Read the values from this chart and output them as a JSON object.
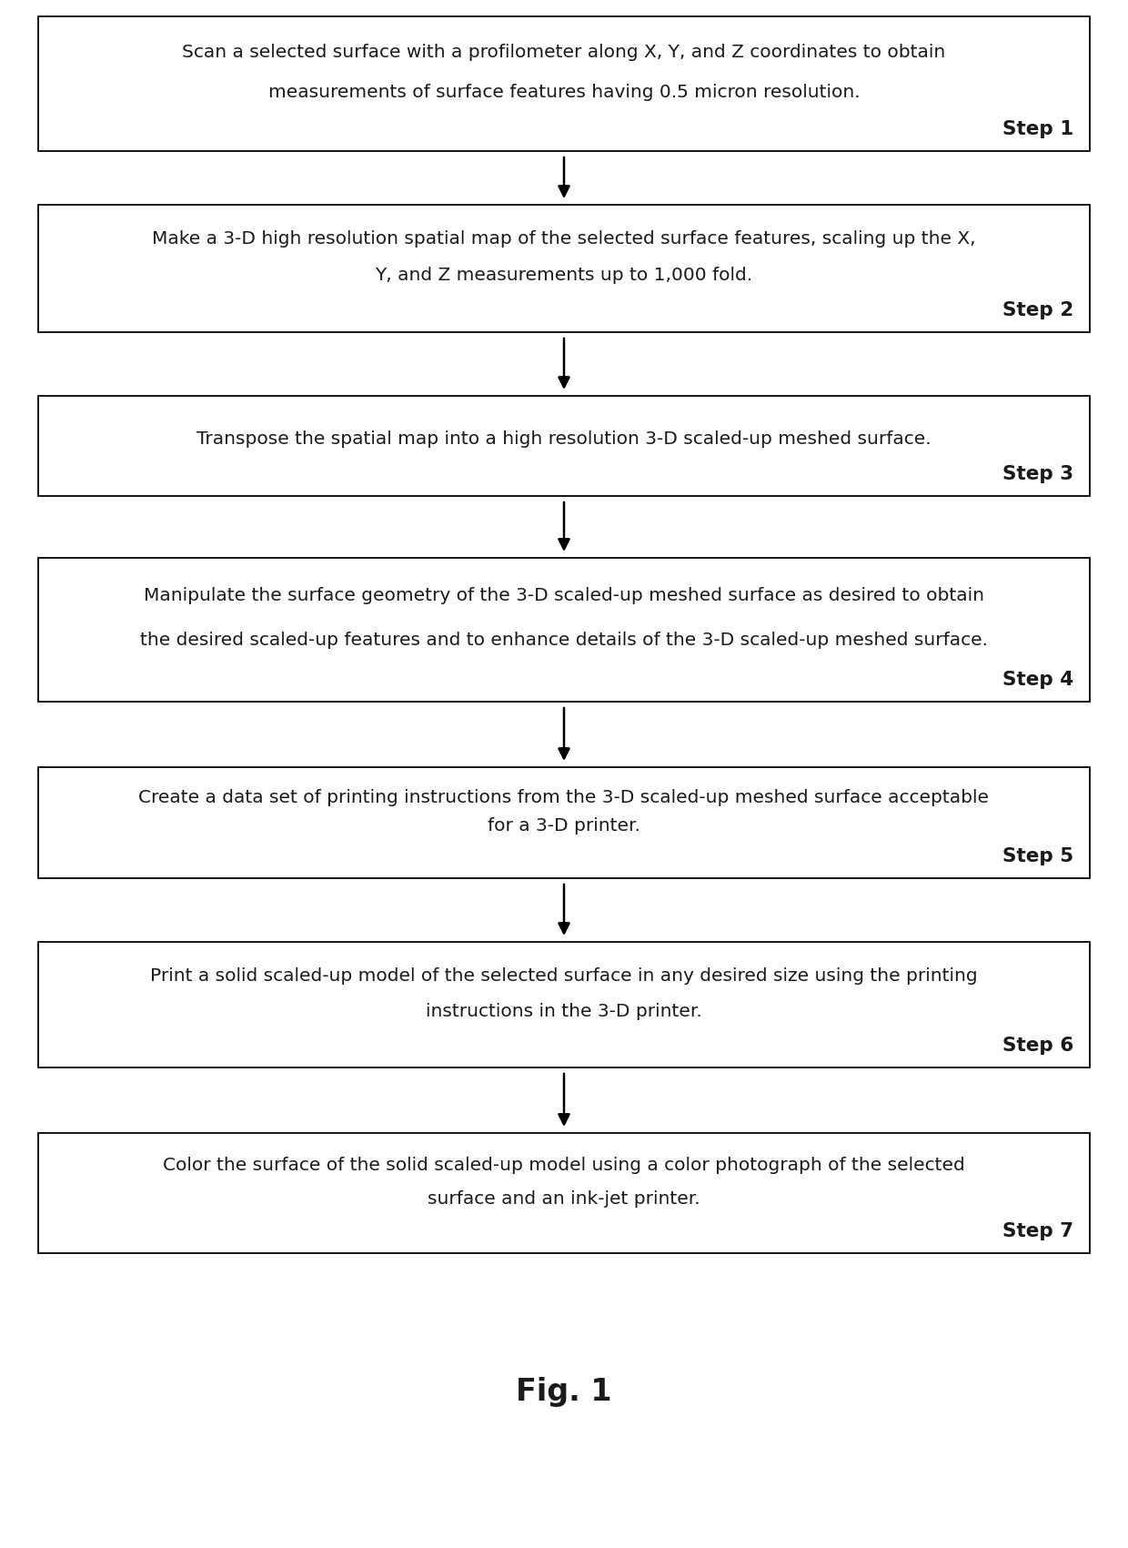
{
  "title": "Fig. 1",
  "background_color": "#ffffff",
  "steps": [
    {
      "step_num": "Step 1",
      "line1": "Scan a selected surface with a profilometer along X, Y, and Z coordinates to obtain",
      "line2": "measurements of surface features having 0.5 micron resolution.",
      "n_text_lines": 2
    },
    {
      "step_num": "Step 2",
      "line1": "Make a 3-D high resolution spatial map of the selected surface features, scaling up the X,",
      "line2": "Y, and Z measurements up to 1,000 fold.",
      "n_text_lines": 2
    },
    {
      "step_num": "Step 3",
      "line1": "Transpose the spatial map into a high resolution 3-D scaled-up meshed surface.",
      "line2": "",
      "n_text_lines": 1
    },
    {
      "step_num": "Step 4",
      "line1": "Manipulate the surface geometry of the 3-D scaled-up meshed surface as desired to obtain",
      "line2": "the desired scaled-up features and to enhance details of the 3-D scaled-up meshed surface.",
      "n_text_lines": 2
    },
    {
      "step_num": "Step 5",
      "line1": "Create a data set of printing instructions from the 3-D scaled-up meshed surface acceptable",
      "line2": "for a 3-D printer.",
      "n_text_lines": 2
    },
    {
      "step_num": "Step 6",
      "line1": "Print a solid scaled-up model of the selected surface in any desired size using the printing",
      "line2": "instructions in the 3-D printer.",
      "n_text_lines": 2
    },
    {
      "step_num": "Step 7",
      "line1": "Color the surface of the solid scaled-up model using a color photograph of the selected",
      "line2": "surface and an ink-jet printer.",
      "n_text_lines": 2
    }
  ],
  "box_edge_color": "#000000",
  "box_face_color": "#ffffff",
  "text_color": "#1a1a1a",
  "arrow_color": "#000000",
  "text_fontsize": 14.5,
  "step_fontsize": 15.5,
  "title_fontsize": 24,
  "fig_width": 12.4,
  "fig_height": 17.01,
  "dpi": 100
}
